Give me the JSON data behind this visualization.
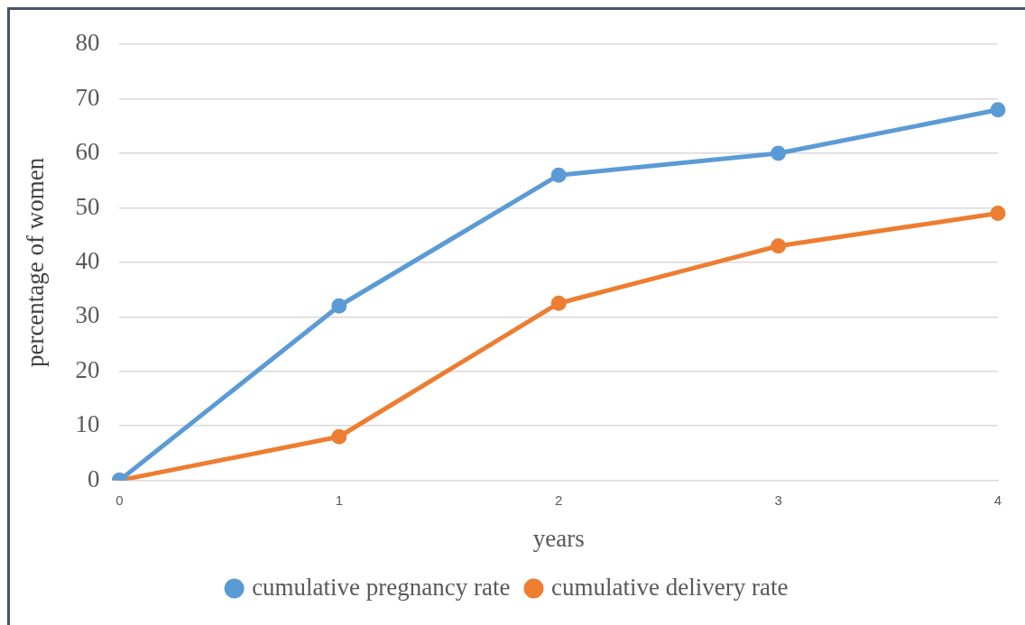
{
  "chart_data": {
    "type": "line",
    "xlabel": "years",
    "ylabel": "percentage of women",
    "categories": [
      "0",
      "1",
      "2",
      "3",
      "4"
    ],
    "series": [
      {
        "name": "cumulative pregnancy rate",
        "color": "#5b9bd5",
        "values": [
          0,
          32,
          56,
          60,
          68
        ]
      },
      {
        "name": "cumulative delivery rate",
        "color": "#ed7d31",
        "values": [
          0,
          8,
          32.5,
          43,
          49
        ]
      }
    ],
    "ylim": [
      0,
      80
    ],
    "yticks": [
      0,
      10,
      20,
      30,
      40,
      50,
      60,
      70,
      80
    ],
    "grid": "y",
    "legend": "bottom",
    "marker": "circle",
    "line_style": "solid"
  }
}
